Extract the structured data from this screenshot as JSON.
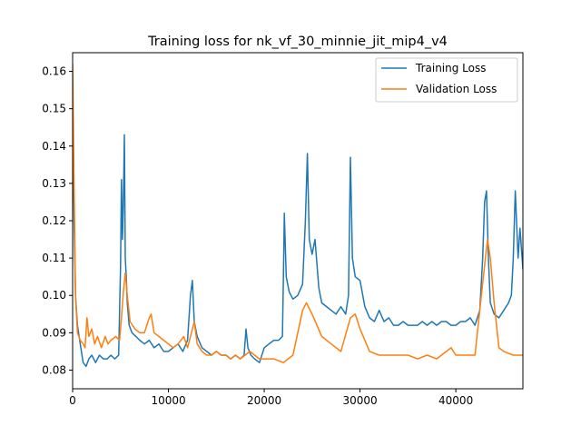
{
  "chart_data": {
    "type": "line",
    "title": "Training loss for nk_vf_30_minnie_jit_mip4_v4",
    "xlabel": "",
    "ylabel": "",
    "xlim": [
      0,
      47000
    ],
    "ylim": [
      0.075,
      0.165
    ],
    "xticks": [
      0,
      10000,
      20000,
      30000,
      40000
    ],
    "xtick_labels": [
      "0",
      "10000",
      "20000",
      "30000",
      "40000"
    ],
    "yticks": [
      0.08,
      0.09,
      0.1,
      0.11,
      0.12,
      0.13,
      0.14,
      0.15,
      0.16
    ],
    "ytick_labels": [
      "0.08",
      "0.09",
      "0.10",
      "0.11",
      "0.12",
      "0.13",
      "0.14",
      "0.15",
      "0.16"
    ],
    "legend_position": "top-right",
    "grid": false,
    "series": [
      {
        "name": "Training Loss",
        "color": "#1f77b4",
        "x": [
          0,
          150,
          300,
          500,
          800,
          1100,
          1400,
          1700,
          2000,
          2400,
          2800,
          3200,
          3600,
          4000,
          4400,
          4800,
          5000,
          5100,
          5200,
          5300,
          5400,
          5500,
          5600,
          5700,
          5900,
          6200,
          6600,
          7000,
          7500,
          8000,
          8500,
          9000,
          9500,
          10000,
          10500,
          11000,
          11500,
          12000,
          12300,
          12500,
          12700,
          13000,
          13500,
          14000,
          14500,
          15000,
          15500,
          16000,
          16500,
          17000,
          17500,
          17900,
          18100,
          18300,
          18600,
          19000,
          19500,
          20000,
          20500,
          21000,
          21500,
          21900,
          22000,
          22100,
          22300,
          22600,
          23000,
          23500,
          24000,
          24300,
          24500,
          24700,
          25000,
          25300,
          25700,
          26000,
          26500,
          27000,
          27500,
          28000,
          28500,
          28800,
          29000,
          29200,
          29500,
          30000,
          30500,
          31000,
          31500,
          32000,
          32500,
          33000,
          33500,
          34000,
          34500,
          35000,
          35500,
          36000,
          36500,
          37000,
          37500,
          38000,
          38500,
          39000,
          39500,
          40000,
          40500,
          41000,
          41500,
          42000,
          42500,
          42800,
          43000,
          43200,
          43400,
          43600,
          44000,
          44500,
          45000,
          45500,
          45800,
          46000,
          46200,
          46500,
          46700,
          47000
        ],
        "values": [
          0.15,
          0.12,
          0.1,
          0.092,
          0.087,
          0.082,
          0.081,
          0.083,
          0.084,
          0.082,
          0.084,
          0.083,
          0.083,
          0.084,
          0.083,
          0.084,
          0.108,
          0.131,
          0.115,
          0.125,
          0.143,
          0.11,
          0.105,
          0.098,
          0.092,
          0.09,
          0.089,
          0.088,
          0.087,
          0.088,
          0.086,
          0.087,
          0.085,
          0.085,
          0.086,
          0.087,
          0.085,
          0.088,
          0.1,
          0.104,
          0.093,
          0.089,
          0.086,
          0.085,
          0.084,
          0.085,
          0.084,
          0.084,
          0.083,
          0.084,
          0.083,
          0.084,
          0.091,
          0.086,
          0.084,
          0.083,
          0.082,
          0.086,
          0.087,
          0.088,
          0.088,
          0.089,
          0.105,
          0.122,
          0.105,
          0.101,
          0.099,
          0.1,
          0.103,
          0.12,
          0.138,
          0.115,
          0.111,
          0.115,
          0.102,
          0.098,
          0.097,
          0.096,
          0.095,
          0.097,
          0.095,
          0.1,
          0.137,
          0.11,
          0.105,
          0.104,
          0.097,
          0.094,
          0.093,
          0.096,
          0.093,
          0.094,
          0.092,
          0.092,
          0.093,
          0.092,
          0.092,
          0.092,
          0.093,
          0.092,
          0.093,
          0.092,
          0.093,
          0.093,
          0.092,
          0.092,
          0.093,
          0.093,
          0.094,
          0.092,
          0.096,
          0.11,
          0.125,
          0.128,
          0.11,
          0.098,
          0.095,
          0.094,
          0.096,
          0.098,
          0.1,
          0.11,
          0.128,
          0.11,
          0.118,
          0.107
        ]
      },
      {
        "name": "Validation Loss",
        "color": "#ff7f0e",
        "x": [
          0,
          150,
          300,
          500,
          800,
          1100,
          1300,
          1500,
          1700,
          2000,
          2300,
          2600,
          3000,
          3400,
          3700,
          4000,
          4500,
          4900,
          5100,
          5300,
          5500,
          5700,
          6000,
          6500,
          7000,
          7500,
          8000,
          8200,
          8500,
          9000,
          9500,
          10000,
          10500,
          11000,
          11300,
          11600,
          12000,
          12400,
          12700,
          13000,
          13500,
          14000,
          14500,
          15000,
          15500,
          16000,
          16500,
          17000,
          17500,
          18000,
          18500,
          19000,
          19500,
          20000,
          21000,
          22000,
          23000,
          24000,
          24400,
          25000,
          25500,
          26000,
          27000,
          28000,
          29000,
          29500,
          30000,
          31000,
          32000,
          33000,
          34000,
          35000,
          36000,
          37000,
          38000,
          39000,
          39500,
          40000,
          41000,
          42000,
          43000,
          43300,
          43600,
          44000,
          44500,
          45000,
          46000,
          47000
        ],
        "values": [
          0.162,
          0.13,
          0.1,
          0.09,
          0.088,
          0.087,
          0.086,
          0.094,
          0.089,
          0.091,
          0.087,
          0.089,
          0.086,
          0.089,
          0.087,
          0.088,
          0.089,
          0.088,
          0.094,
          0.101,
          0.106,
          0.1,
          0.093,
          0.091,
          0.09,
          0.09,
          0.094,
          0.095,
          0.09,
          0.089,
          0.088,
          0.087,
          0.086,
          0.087,
          0.088,
          0.089,
          0.086,
          0.09,
          0.093,
          0.087,
          0.085,
          0.084,
          0.084,
          0.085,
          0.084,
          0.084,
          0.083,
          0.084,
          0.083,
          0.084,
          0.085,
          0.084,
          0.083,
          0.083,
          0.083,
          0.082,
          0.084,
          0.096,
          0.098,
          0.095,
          0.092,
          0.089,
          0.087,
          0.085,
          0.094,
          0.095,
          0.091,
          0.085,
          0.084,
          0.084,
          0.084,
          0.084,
          0.083,
          0.084,
          0.083,
          0.085,
          0.086,
          0.084,
          0.084,
          0.084,
          0.108,
          0.115,
          0.11,
          0.098,
          0.086,
          0.085,
          0.084,
          0.084
        ]
      }
    ]
  }
}
